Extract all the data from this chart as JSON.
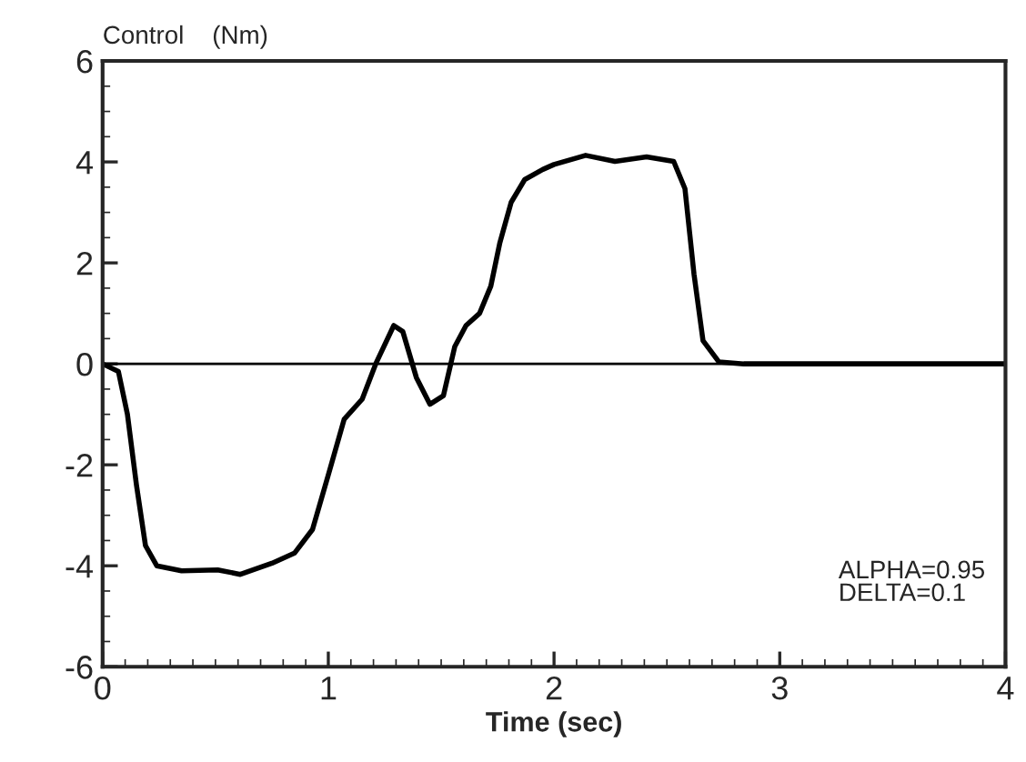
{
  "chart_data": {
    "type": "line",
    "title": "Control    (Nm)",
    "xlabel": "Time (sec)",
    "x": [
      0,
      0.07,
      0.11,
      0.15,
      0.19,
      0.24,
      0.35,
      0.51,
      0.61,
      0.75,
      0.85,
      0.93,
      1.0,
      1.07,
      1.15,
      1.21,
      1.29,
      1.33,
      1.39,
      1.45,
      1.51,
      1.56,
      1.61,
      1.67,
      1.72,
      1.76,
      1.81,
      1.87,
      1.95,
      2.0,
      2.14,
      2.27,
      2.41,
      2.53,
      2.58,
      2.62,
      2.66,
      2.73,
      2.84,
      4.0
    ],
    "series": [
      {
        "color": "#000000",
        "values": [
          0,
          -0.15,
          -1.0,
          -2.4,
          -3.6,
          -4.0,
          -4.1,
          -4.08,
          -4.17,
          -3.95,
          -3.75,
          -3.28,
          -2.2,
          -1.1,
          -0.7,
          0,
          0.76,
          0.64,
          -0.27,
          -0.8,
          -0.63,
          0.34,
          0.76,
          1.0,
          1.54,
          2.4,
          3.2,
          3.65,
          3.85,
          3.95,
          4.13,
          4.01,
          4.1,
          4.01,
          3.47,
          1.78,
          0.46,
          0.04,
          0,
          0
        ]
      }
    ],
    "xlim": [
      0,
      4
    ],
    "ylim": [
      -6,
      6
    ],
    "xticks": [
      0,
      1,
      2,
      3,
      4
    ],
    "yticks": [
      -6,
      -4,
      -2,
      0,
      2,
      4,
      6
    ],
    "ref_lines": [
      {
        "axis": "y",
        "value": 0,
        "color": "#000000"
      }
    ],
    "annotations": [
      "ALPHA=0.95\nDELTA=0.1"
    ],
    "grid": false,
    "legend": false
  }
}
